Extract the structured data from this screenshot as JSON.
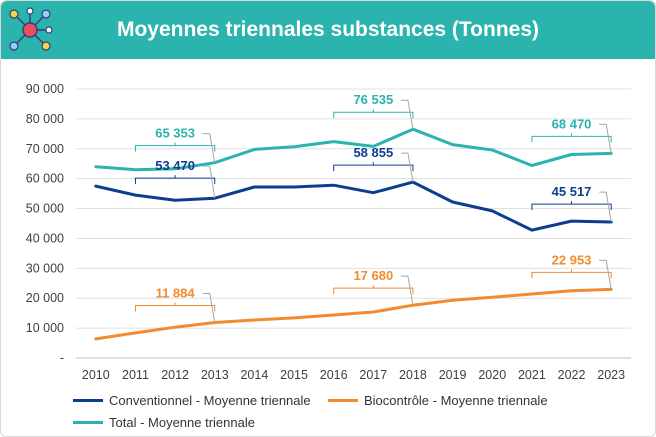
{
  "header": {
    "title": "Moyennes triennales substances (Tonnes)",
    "logo_icon": "molecule-network-icon",
    "header_color": "#2bb3ad"
  },
  "chart_data": {
    "type": "line",
    "title": "Moyennes triennales substances (Tonnes)",
    "xlabel": "",
    "ylabel": "",
    "ylim": [
      0,
      90000
    ],
    "yticks": [
      0,
      10000,
      20000,
      30000,
      40000,
      50000,
      60000,
      70000,
      80000,
      90000
    ],
    "ytick_labels": [
      "-",
      "10 000",
      "20 000",
      "30 000",
      "40 000",
      "50 000",
      "60 000",
      "70 000",
      "80 000",
      "90 000"
    ],
    "grid": true,
    "legend_position": "bottom",
    "categories": [
      "2010",
      "2011",
      "2012",
      "2013",
      "2014",
      "2015",
      "2016",
      "2017",
      "2018",
      "2019",
      "2020",
      "2021",
      "2022",
      "2023"
    ],
    "series": [
      {
        "name": "Conventionnel - Moyenne triennale",
        "color": "#0d3d91",
        "values": [
          57500,
          54500,
          52800,
          53470,
          57200,
          57200,
          57800,
          55300,
          58855,
          52200,
          49200,
          42800,
          45800,
          45517
        ]
      },
      {
        "name": "Biocontrôle - Moyenne triennale",
        "color": "#f28b30",
        "values": [
          6400,
          8400,
          10300,
          11884,
          12700,
          13400,
          14400,
          15400,
          17680,
          19300,
          20300,
          21400,
          22500,
          22953
        ]
      },
      {
        "name": "Total - Moyenne triennale",
        "color": "#2bb3ad",
        "values": [
          64000,
          63000,
          63300,
          65353,
          69800,
          70700,
          72400,
          70800,
          76535,
          71400,
          69600,
          64400,
          68100,
          68470
        ]
      }
    ],
    "annotations": [
      {
        "series": 2,
        "range": [
          "2011",
          "2013"
        ],
        "label": "65 353"
      },
      {
        "series": 0,
        "range": [
          "2011",
          "2013"
        ],
        "label": "53 470"
      },
      {
        "series": 1,
        "range": [
          "2011",
          "2013"
        ],
        "label": "11 884"
      },
      {
        "series": 2,
        "range": [
          "2016",
          "2018"
        ],
        "label": "76 535"
      },
      {
        "series": 0,
        "range": [
          "2016",
          "2018"
        ],
        "label": "58 855"
      },
      {
        "series": 1,
        "range": [
          "2016",
          "2018"
        ],
        "label": "17 680"
      },
      {
        "series": 2,
        "range": [
          "2021",
          "2023"
        ],
        "label": "68 470"
      },
      {
        "series": 0,
        "range": [
          "2021",
          "2023"
        ],
        "label": "45 517"
      },
      {
        "series": 1,
        "range": [
          "2021",
          "2023"
        ],
        "label": "22 953"
      }
    ]
  }
}
